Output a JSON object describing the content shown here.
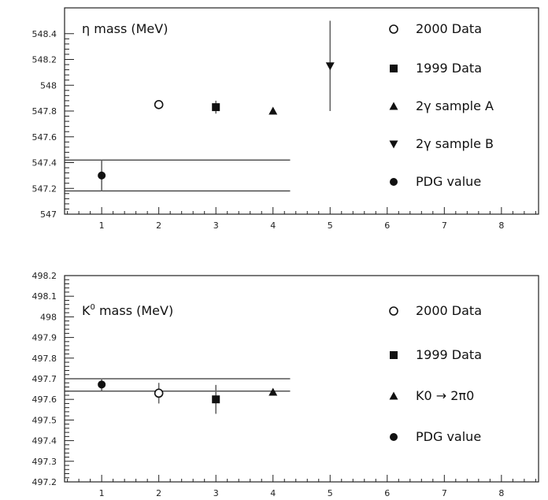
{
  "chart_data": [
    {
      "type": "scatter",
      "title": "η mass (MeV)",
      "title_parts": {
        "symbol": "η",
        "text": " mass (MeV)"
      },
      "xlim": [
        0.35,
        8.65
      ],
      "ylim": [
        547.0,
        548.6
      ],
      "x_ticks": [
        "1",
        "2",
        "3",
        "4",
        "5",
        "6",
        "7",
        "8"
      ],
      "y_ticks": [
        "547",
        "547.2",
        "547.4",
        "547.6",
        "547.8",
        "548",
        "548.2",
        "548.4"
      ],
      "grid": false,
      "legend_placement": "right",
      "series": [
        {
          "name": "2000 Data",
          "marker": "open-circle",
          "points": [
            {
              "x": 2,
              "y": 547.85,
              "err": 0.02
            }
          ]
        },
        {
          "name": "1999 Data",
          "marker": "filled-square",
          "points": [
            {
              "x": 3,
              "y": 547.83,
              "err": 0.05
            }
          ]
        },
        {
          "name": "2γ sample A",
          "marker": "filled-triangle-up",
          "points": [
            {
              "x": 4,
              "y": 547.8,
              "err": 0.0
            }
          ]
        },
        {
          "name": "2γ sample B",
          "marker": "filled-triangle-down",
          "points": [
            {
              "x": 5,
              "y": 548.15,
              "err": 0.35
            }
          ]
        },
        {
          "name": "PDG value",
          "marker": "filled-circle",
          "points": [
            {
              "x": 1,
              "y": 547.3,
              "err": 0.12
            }
          ]
        }
      ],
      "reference_band": {
        "y_low": 547.18,
        "y_high": 547.42,
        "x_end": 4.3
      }
    },
    {
      "type": "scatter",
      "title": "K0 mass (MeV)",
      "title_parts": {
        "base": "K",
        "sup": "0",
        "text": " mass (MeV)"
      },
      "xlim": [
        0.35,
        8.65
      ],
      "ylim": [
        497.2,
        498.2
      ],
      "x_ticks": [
        "1",
        "2",
        "3",
        "4",
        "5",
        "6",
        "7",
        "8"
      ],
      "y_ticks": [
        "497.2",
        "497.3",
        "497.4",
        "497.5",
        "497.6",
        "497.7",
        "497.8",
        "497.9",
        "498",
        "498.1",
        "498.2"
      ],
      "grid": false,
      "legend_placement": "right",
      "series": [
        {
          "name": "2000 Data",
          "marker": "open-circle",
          "points": [
            {
              "x": 2,
              "y": 497.63,
              "err": 0.05
            }
          ]
        },
        {
          "name": "1999 Data",
          "marker": "filled-square",
          "points": [
            {
              "x": 3,
              "y": 497.6,
              "err": 0.07
            }
          ]
        },
        {
          "name": "K0 → 2π0",
          "marker": "filled-triangle-up",
          "points": [
            {
              "x": 4,
              "y": 497.635,
              "err": 0.0
            }
          ]
        },
        {
          "name": "PDG value",
          "marker": "filled-circle",
          "points": [
            {
              "x": 1,
              "y": 497.672,
              "err": 0.03
            }
          ]
        }
      ],
      "reference_band": {
        "y_low": 497.64,
        "y_high": 497.7,
        "x_end": 4.3
      }
    }
  ]
}
